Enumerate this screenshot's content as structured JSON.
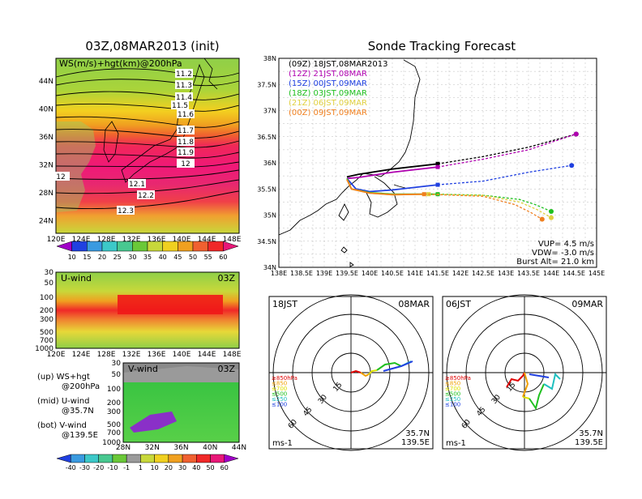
{
  "left_title": "03Z,08MAR2013 (init)",
  "right_title": "Sonde Tracking Forecast",
  "map_panel": {
    "label": "WS(m/s)+hgt(km)@200hPa",
    "lat_ticks": [
      "44N",
      "40N",
      "36N",
      "32N",
      "28N",
      "24N"
    ],
    "lon_ticks": [
      "120E",
      "124E",
      "128E",
      "132E",
      "136E",
      "140E",
      "144E",
      "148E"
    ],
    "contour_labels": [
      "11.2",
      "11.3",
      "11.4",
      "11.5",
      "11.6",
      "11.7",
      "11.8",
      "11.9",
      "12",
      "12",
      "12.1",
      "12.2",
      "12.3"
    ],
    "colorbar_ticks": [
      "10",
      "15",
      "20",
      "25",
      "30",
      "35",
      "40",
      "45",
      "50",
      "55",
      "60"
    ]
  },
  "u_panel": {
    "label": "U-wind",
    "time": "03Z",
    "p_ticks": [
      "30",
      "50",
      "100",
      "200",
      "300",
      "500",
      "700",
      "1000"
    ],
    "lon_ticks": [
      "120E",
      "124E",
      "128E",
      "132E",
      "136E",
      "140E",
      "144E",
      "148E"
    ]
  },
  "v_panel": {
    "label": "V-wind",
    "time": "03Z",
    "p_ticks": [
      "30",
      "50",
      "100",
      "200",
      "300",
      "500",
      "700",
      "1000"
    ],
    "lat_ticks": [
      "28N",
      "32N",
      "36N",
      "40N",
      "44N"
    ]
  },
  "legend_notes": [
    {
      "a": "(up) WS+hgt",
      "b": "@200hPa"
    },
    {
      "a": "(mid) U-wind",
      "b": "@35.7N"
    },
    {
      "a": "(bot) V-wind",
      "b": "@139.5E"
    }
  ],
  "bottom_colorbar_ticks": [
    "-40",
    "-30",
    "-20",
    "-10",
    "-1",
    "1",
    "10",
    "20",
    "30",
    "40",
    "50",
    "60"
  ],
  "track_panel": {
    "lat_ticks": [
      "38N",
      "37.5N",
      "37N",
      "36.5N",
      "36N",
      "35.5N",
      "35N",
      "34.5N",
      "34N"
    ],
    "lon_ticks": [
      "138E",
      "138.5E",
      "139E",
      "139.5E",
      "140E",
      "140.5E",
      "141E",
      "141.5E",
      "142E",
      "142.5E",
      "143E",
      "143.5E",
      "144E",
      "144.5E",
      "145E"
    ],
    "vup": "VUP= 4.5 m/s",
    "vdw": "VDW= -3.0 m/s",
    "burst": "Burst Alt= 21.0 km"
  },
  "polar_left": {
    "left": "18JST",
    "right": "08MAR",
    "lat": "35.7N",
    "lon": "139.5E",
    "unit": "ms-1"
  },
  "polar_right": {
    "left": "06JST",
    "right": "09MAR",
    "lat": "35.7N",
    "lon": "139.5E",
    "unit": "ms-1"
  },
  "polar_ring_labels": [
    "15",
    "30",
    "45",
    "60"
  ],
  "polar_legend": [
    {
      "text": "≥850hPa",
      "color": "#e00000"
    },
    {
      "text": "≤850",
      "color": "#f0a000"
    },
    {
      "text": "≤700",
      "color": "#e0e000"
    },
    {
      "text": "≤500",
      "color": "#20c020"
    },
    {
      "text": "≤250",
      "color": "#20c0c0"
    },
    {
      "text": "≤100",
      "color": "#2040e0"
    }
  ],
  "chart_data": {
    "type": "line",
    "title": "Sonde Tracking Forecast",
    "xlim": [
      138,
      145
    ],
    "ylim": [
      34,
      38
    ],
    "series": [
      {
        "name": "(09Z) 18JST,08MAR2013",
        "color": "#000000",
        "solid": [
          [
            139.5,
            35.73
          ],
          [
            139.75,
            35.78
          ],
          [
            140.5,
            35.88
          ],
          [
            141.5,
            35.98
          ]
        ],
        "dashed": [
          [
            141.5,
            35.98
          ],
          [
            142.5,
            36.12
          ],
          [
            143.5,
            36.3
          ],
          [
            144.55,
            36.55
          ]
        ]
      },
      {
        "name": "(12Z) 21JST,08MAR",
        "color": "#b000b0",
        "solid": [
          [
            139.5,
            35.7
          ],
          [
            139.75,
            35.72
          ],
          [
            140.5,
            35.82
          ],
          [
            141.5,
            35.92
          ]
        ],
        "dashed": [
          [
            141.5,
            35.92
          ],
          [
            142.5,
            36.07
          ],
          [
            143.5,
            36.25
          ],
          [
            144.55,
            36.55
          ]
        ]
      },
      {
        "name": "(15Z) 00JST,09MAR",
        "color": "#2040e0",
        "solid": [
          [
            139.5,
            35.7
          ],
          [
            139.7,
            35.5
          ],
          [
            140.0,
            35.45
          ],
          [
            140.5,
            35.48
          ],
          [
            141.5,
            35.58
          ]
        ],
        "dashed": [
          [
            141.5,
            35.58
          ],
          [
            142.5,
            35.65
          ],
          [
            143.5,
            35.82
          ],
          [
            144.45,
            35.95
          ]
        ]
      },
      {
        "name": "(18Z) 03JST,09MAR",
        "color": "#20c020",
        "solid": [
          [
            139.5,
            35.7
          ],
          [
            139.6,
            35.5
          ],
          [
            140.0,
            35.43
          ],
          [
            140.5,
            35.4
          ],
          [
            141.5,
            35.4
          ]
        ],
        "dashed": [
          [
            141.5,
            35.4
          ],
          [
            142.5,
            35.38
          ],
          [
            143.3,
            35.3
          ],
          [
            143.65,
            35.2
          ],
          [
            144.0,
            35.07
          ]
        ]
      },
      {
        "name": "(21Z) 06JST,09MAR",
        "color": "#e0d040",
        "solid": [
          [
            139.5,
            35.68
          ],
          [
            139.6,
            35.5
          ],
          [
            140.0,
            35.42
          ],
          [
            140.5,
            35.39
          ],
          [
            141.3,
            35.4
          ]
        ],
        "dashed": [
          [
            141.3,
            35.4
          ],
          [
            142.5,
            35.38
          ],
          [
            143.3,
            35.25
          ],
          [
            143.7,
            35.1
          ],
          [
            144.0,
            34.95
          ]
        ]
      },
      {
        "name": "(00Z) 09JST,09MAR",
        "color": "#f08020",
        "solid": [
          [
            139.5,
            35.68
          ],
          [
            139.6,
            35.5
          ],
          [
            140.0,
            35.42
          ],
          [
            140.5,
            35.39
          ],
          [
            141.2,
            35.4
          ]
        ],
        "dashed": [
          [
            141.2,
            35.4
          ],
          [
            142.5,
            35.36
          ],
          [
            143.2,
            35.2
          ],
          [
            143.55,
            35.05
          ],
          [
            143.8,
            34.92
          ]
        ]
      }
    ]
  }
}
